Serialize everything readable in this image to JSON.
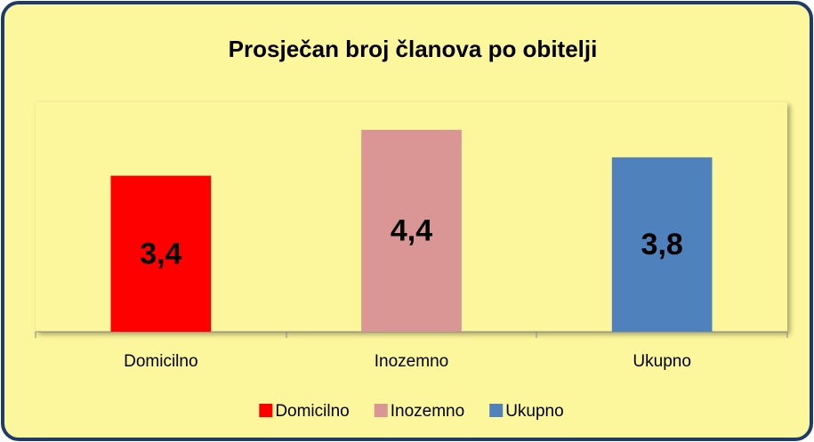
{
  "chart_data": {
    "type": "bar",
    "title": "Prosječan broj članova po obitelji",
    "categories": [
      "Domicilno",
      "Inozemno",
      "Ukupno"
    ],
    "values": [
      3.4,
      4.4,
      3.8
    ],
    "value_labels": [
      "3,4",
      "4,4",
      "3,8"
    ],
    "colors": [
      "#ff0000",
      "#d99694",
      "#4f81bd"
    ],
    "ylim": [
      0,
      5
    ],
    "legend": "bottom"
  }
}
